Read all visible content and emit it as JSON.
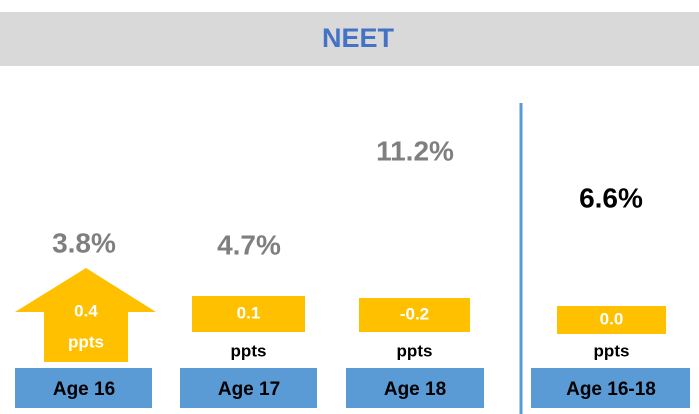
{
  "header": {
    "title": "NEET"
  },
  "groups": [
    {
      "label": "Age 16",
      "rate": "3.8%",
      "change": "0.4",
      "unit": "ppts"
    },
    {
      "label": "Age 17",
      "rate": "4.7%",
      "change": "0.1",
      "unit": "ppts"
    },
    {
      "label": "Age 18",
      "rate": "11.2%",
      "change": "-0.2",
      "unit": "ppts"
    },
    {
      "label": "Age 16-18",
      "rate": "6.6%",
      "change": "0.0",
      "unit": "ppts"
    }
  ]
}
